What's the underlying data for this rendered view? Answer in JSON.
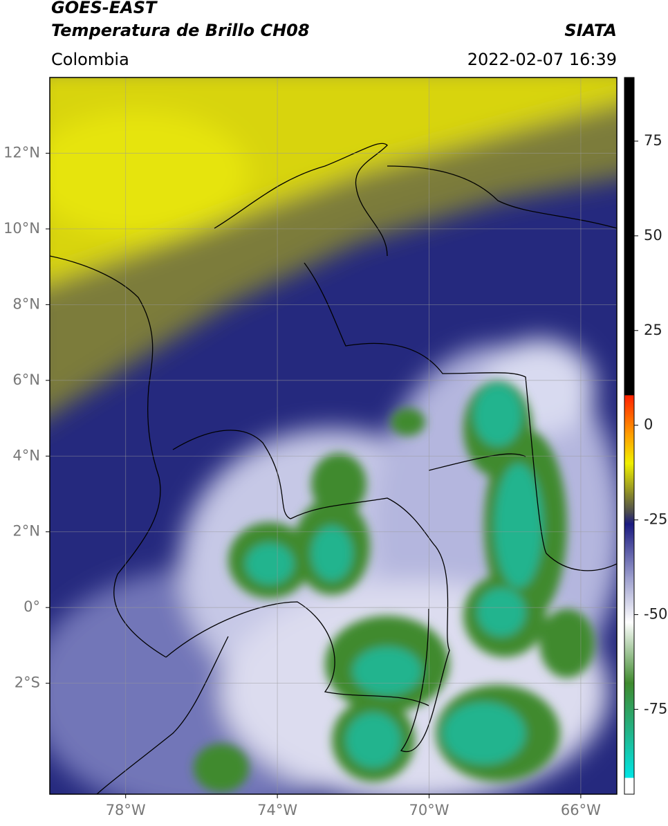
{
  "header": {
    "title": "GOES-EAST",
    "subtitle": "Temperatura de Brillo CH08",
    "source": "SIATA",
    "region": "Colombia",
    "datetime": "2022-02-07 16:39"
  },
  "map": {
    "xlim": [
      -80,
      -65.05
    ],
    "ylim": [
      -4.93,
      14.0
    ],
    "xticks": [
      {
        "value": -78,
        "label": "78°W"
      },
      {
        "value": -74,
        "label": "74°W"
      },
      {
        "value": -70,
        "label": "70°W"
      },
      {
        "value": -66,
        "label": "66°W"
      }
    ],
    "yticks": [
      {
        "value": 12,
        "label": "12°N"
      },
      {
        "value": 10,
        "label": "10°N"
      },
      {
        "value": 8,
        "label": "8°N"
      },
      {
        "value": 6,
        "label": "6°N"
      },
      {
        "value": 4,
        "label": "4°N"
      },
      {
        "value": 2,
        "label": "2°N"
      },
      {
        "value": 0,
        "label": "0°"
      },
      {
        "value": -2,
        "label": "2°S"
      }
    ],
    "grid": true
  },
  "colorbar": {
    "lim": [
      -97.4,
      91.8
    ],
    "ticks": [
      75,
      50,
      25,
      0,
      -25,
      -50,
      -75
    ],
    "colormap": [
      [
        -97.4,
        "#ffffff"
      ],
      [
        -93,
        "#ffffff"
      ],
      [
        -93,
        "#00e5e5"
      ],
      [
        -82,
        "#20b890"
      ],
      [
        -68,
        "#3f8a2e"
      ],
      [
        -52,
        "#ffffff"
      ],
      [
        -40,
        "#9a9ccc"
      ],
      [
        -26,
        "#1a1a80"
      ],
      [
        -23,
        "#4a4a50"
      ],
      [
        -18,
        "#8a8a2a"
      ],
      [
        -10,
        "#f0f000"
      ],
      [
        -2,
        "#ff9900"
      ],
      [
        8,
        "#ff2000"
      ],
      [
        8,
        "#000000"
      ],
      [
        91.8,
        "#000000"
      ]
    ]
  }
}
